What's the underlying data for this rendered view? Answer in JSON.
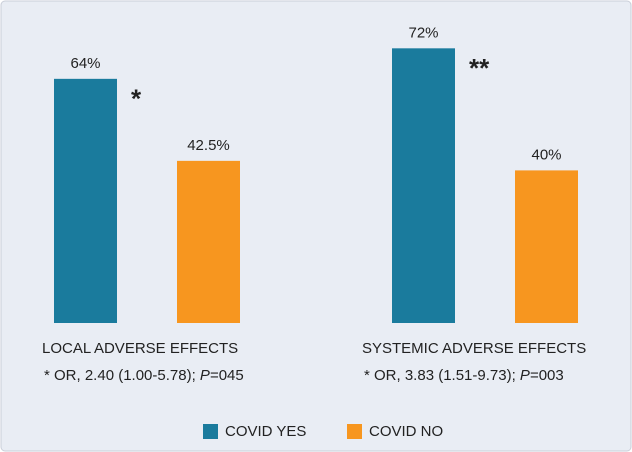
{
  "chart_data": {
    "type": "bar",
    "categories": [
      "LOCAL ADVERSE EFFECTS",
      "SYSTEMIC ADVERSE EFFECTS"
    ],
    "notes": [
      [
        "* OR, 2.40 (1.00-5.78); ",
        "P",
        "=045"
      ],
      [
        "* OR, 3.83 (1.51-9.73); ",
        "P",
        "=003"
      ]
    ],
    "markers": [
      "*",
      "**"
    ],
    "series": [
      {
        "name": "COVID YES",
        "color": "#1a7b9d",
        "values": [
          64,
          72
        ],
        "value_labels": [
          "64%",
          "72%"
        ]
      },
      {
        "name": "COVID NO",
        "color": "#f7961f",
        "values": [
          42.5,
          40
        ],
        "value_labels": [
          "42.5%",
          "40%"
        ]
      }
    ]
  }
}
